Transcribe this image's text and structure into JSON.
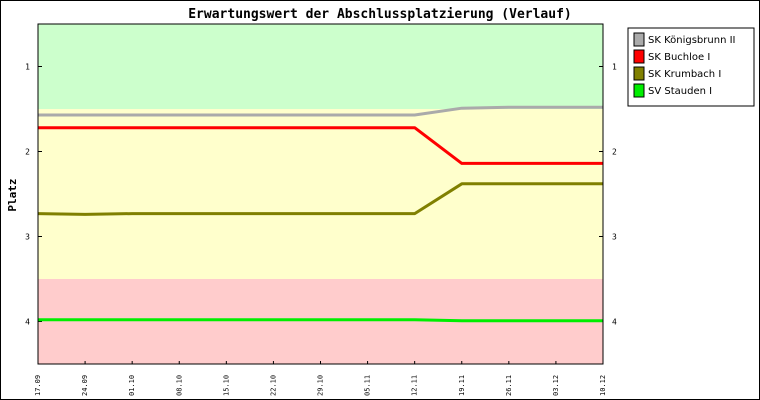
{
  "chart_data": {
    "type": "line",
    "title": "Erwartungswert der Abschlussplatzierung (Verlauf)",
    "ylabel": "Platz",
    "xlabel": "",
    "ylim": [
      4.5,
      0.5
    ],
    "y_inverted": true,
    "yticks": [
      "1",
      "2",
      "3",
      "4"
    ],
    "x": [
      "17.09",
      "24.09",
      "01.10",
      "08.10",
      "15.10",
      "22.10",
      "29.10",
      "05.11",
      "12.11",
      "19.11",
      "26.11",
      "03.12",
      "10.12"
    ],
    "bands": [
      {
        "from": 0.5,
        "to": 1.5,
        "color": "#ccffcc"
      },
      {
        "from": 1.5,
        "to": 3.5,
        "color": "#ffffcc"
      },
      {
        "from": 3.5,
        "to": 4.5,
        "color": "#ffcccc"
      }
    ],
    "legend_position": "right",
    "series": [
      {
        "name": "SK Königsbrunn II",
        "color": "#aaaaaa",
        "values": [
          1.57,
          1.57,
          1.57,
          1.57,
          1.57,
          1.57,
          1.57,
          1.57,
          1.57,
          1.49,
          1.48,
          1.48,
          1.48
        ]
      },
      {
        "name": "SK Buchloe I",
        "color": "#ff0000",
        "values": [
          1.72,
          1.72,
          1.72,
          1.72,
          1.72,
          1.72,
          1.72,
          1.72,
          1.72,
          2.14,
          2.14,
          2.14,
          2.14
        ]
      },
      {
        "name": "SK Krumbach I",
        "color": "#808000",
        "values": [
          2.73,
          2.74,
          2.73,
          2.73,
          2.73,
          2.73,
          2.73,
          2.73,
          2.73,
          2.38,
          2.38,
          2.38,
          2.38
        ]
      },
      {
        "name": "SV Stauden I",
        "color": "#00ee00",
        "values": [
          3.98,
          3.98,
          3.98,
          3.98,
          3.98,
          3.98,
          3.98,
          3.98,
          3.98,
          3.99,
          3.99,
          3.99,
          3.99
        ]
      }
    ]
  }
}
